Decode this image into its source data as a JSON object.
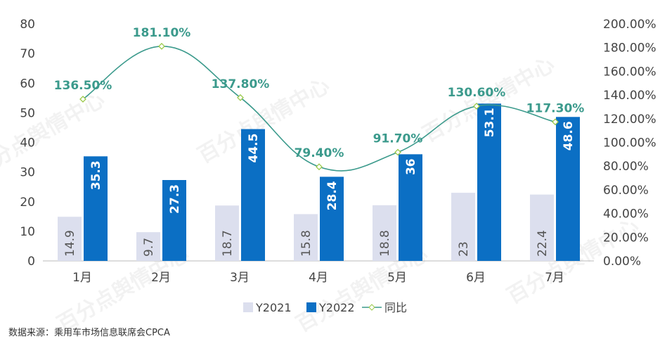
{
  "chart_data": {
    "type": "bar",
    "categories": [
      "1月",
      "2月",
      "3月",
      "4月",
      "5月",
      "6月",
      "7月"
    ],
    "series": [
      {
        "name": "Y2021",
        "type": "bar",
        "axis": "left",
        "color": "#dcdfee",
        "values": [
          14.9,
          9.7,
          18.7,
          15.8,
          18.8,
          23,
          22.4
        ],
        "labels": [
          "14.9",
          "9.7",
          "18.7",
          "15.8",
          "18.8",
          "23",
          "22.4"
        ]
      },
      {
        "name": "Y2022",
        "type": "bar",
        "axis": "left",
        "color": "#0b6fc4",
        "values": [
          35.3,
          27.3,
          44.5,
          28.4,
          36,
          53.1,
          48.6
        ],
        "labels": [
          "35.3",
          "27.3",
          "44.5",
          "28.4",
          "36",
          "53.1",
          "48.6"
        ]
      },
      {
        "name": "同比",
        "type": "line",
        "axis": "right",
        "color": "#3b9a8c",
        "values": [
          136.5,
          181.1,
          137.8,
          79.4,
          91.7,
          130.6,
          117.3
        ],
        "labels": [
          "136.50%",
          "181.10%",
          "137.80%",
          "79.40%",
          "91.70%",
          "130.60%",
          "117.30%"
        ]
      }
    ],
    "y_left": {
      "range": [
        0,
        80
      ],
      "ticks": [
        "0",
        "10",
        "20",
        "30",
        "40",
        "50",
        "60",
        "70",
        "80"
      ]
    },
    "y_right": {
      "range": [
        0,
        200
      ],
      "ticks": [
        "0.00%",
        "20.00%",
        "40.00%",
        "60.00%",
        "80.00%",
        "100.00%",
        "120.00%",
        "140.00%",
        "160.00%",
        "180.00%",
        "200.00%"
      ]
    },
    "legend": "bottom",
    "grid": false
  },
  "source": "数据来源：乘用车市场信息联席会CPCA",
  "watermark": "百分点舆情中心"
}
